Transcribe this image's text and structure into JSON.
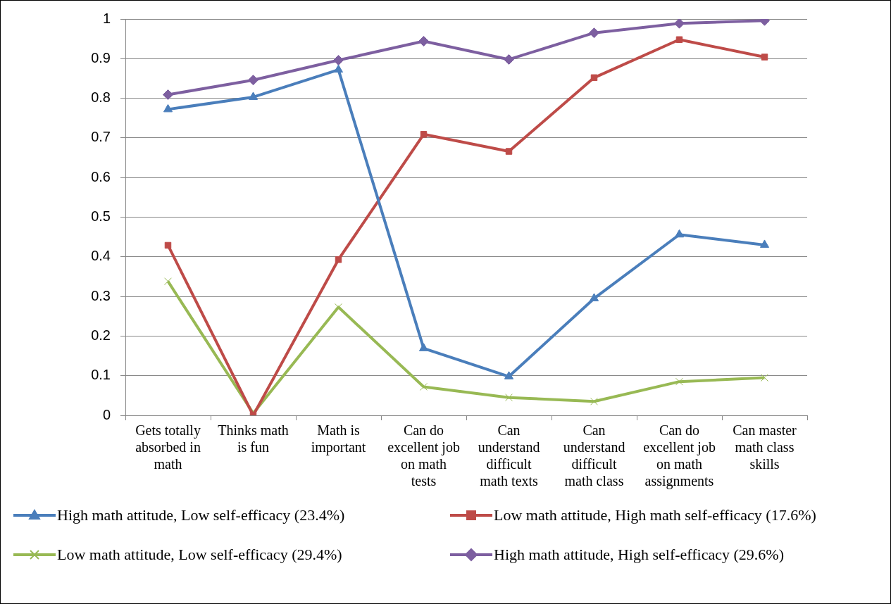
{
  "chart_data": {
    "type": "line",
    "categories": [
      "Gets totally absorbed in math",
      "Thinks math is fun",
      "Math is important",
      "Can do excellent job on math tests",
      "Can understand difficult math texts",
      "Can understand difficult math class",
      "Can do excellent job on math assignments",
      "Can master math class skills"
    ],
    "series": [
      {
        "name": "High math attitude, Low self-efficacy (23.4%)",
        "color": "#4a7ebb",
        "marker": "triangle",
        "values": [
          0.772,
          0.803,
          0.872,
          0.169,
          0.098,
          0.295,
          0.456,
          0.43
        ]
      },
      {
        "name": "Low math attitude, High math self-efficacy (17.6%)",
        "color": "#be4b48",
        "marker": "square",
        "values": [
          0.429,
          0.0,
          0.393,
          0.709,
          0.666,
          0.852,
          0.948,
          0.904
        ]
      },
      {
        "name": "Low math attitude, Low self-efficacy (29.4%)",
        "color": "#98b954",
        "marker": "cross",
        "values": [
          0.338,
          0.005,
          0.273,
          0.072,
          0.045,
          0.035,
          0.085,
          0.095
        ]
      },
      {
        "name": "High math attitude, High self-efficacy (29.6%)",
        "color": "#7d5fa0",
        "marker": "diamond",
        "values": [
          0.809,
          0.846,
          0.896,
          0.944,
          0.898,
          0.965,
          0.989,
          0.996
        ]
      }
    ],
    "ylim": [
      0,
      1
    ],
    "yticks": [
      0,
      0.1,
      0.2,
      0.3,
      0.4,
      0.5,
      0.6,
      0.7,
      0.8,
      0.9,
      1
    ],
    "grid": "y",
    "legend": "bottom",
    "line_style": "solid"
  }
}
